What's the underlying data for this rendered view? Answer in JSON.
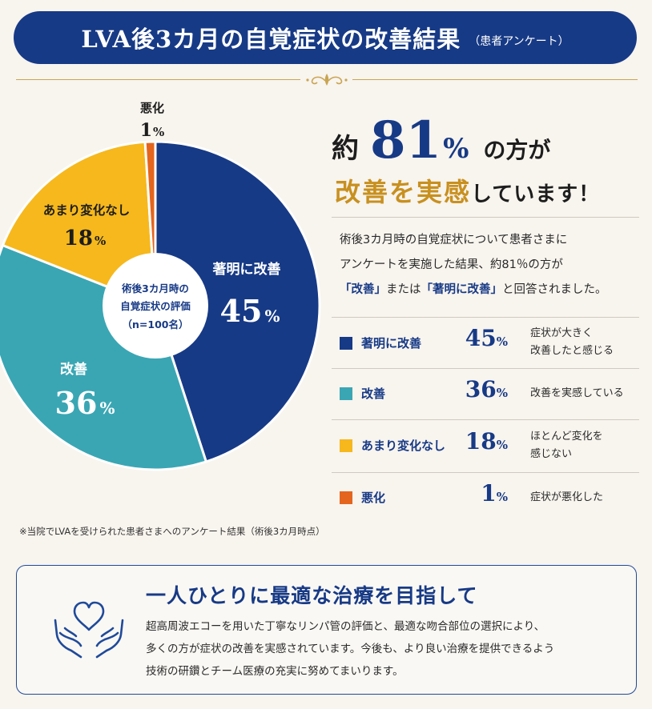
{
  "banner": {
    "title": "LVA後3カ月の自覚症状の改善結果",
    "subtitle": "（患者アンケート）"
  },
  "headline": {
    "prefix": "約",
    "value": "81",
    "unit": "%",
    "suffix": "の方が",
    "line2_highlight": "改善を実感",
    "line2_rest": "しています！"
  },
  "description": {
    "line1": "術後3カ月時の自覚症状について患者さまに",
    "line2": "アンケートを実施した結果、約81％の方が",
    "q1": "「改善」",
    "mid": "または",
    "q2": "「著明に改善」",
    "end": "と回答されました。"
  },
  "chart_data": {
    "type": "pie",
    "center_label": [
      "術後3カ月時の",
      "自覚症状の評価",
      "（n=100名）"
    ],
    "unit": "%",
    "slices": [
      {
        "label": "著明に改善",
        "value": 45,
        "color": "#173a86"
      },
      {
        "label": "改善",
        "value": 36,
        "color": "#3aa6b4"
      },
      {
        "label": "あまり変化なし",
        "value": 18,
        "color": "#f6b81c"
      },
      {
        "label": "悪化",
        "value": 1,
        "color": "#e4651e"
      }
    ]
  },
  "legend": [
    {
      "label": "著明に改善",
      "value": "45",
      "unit": "%",
      "desc": [
        "症状が大きく",
        "改善したと感じる"
      ],
      "color": "#173a86"
    },
    {
      "label": "改善",
      "value": "36",
      "unit": "%",
      "desc": [
        "改善を実感している"
      ],
      "color": "#3aa6b4"
    },
    {
      "label": "あまり変化なし",
      "value": "18",
      "unit": "%",
      "desc": [
        "ほとんど変化を",
        "感じない"
      ],
      "color": "#f6b81c"
    },
    {
      "label": "悪化",
      "value": "1",
      "unit": "%",
      "desc": [
        "症状が悪化した"
      ],
      "color": "#e4651e"
    }
  ],
  "footnote": "※当院でLVAを受けられた患者さまへのアンケート結果（術後3カ月時点）",
  "message": {
    "icon": "heart-hands-icon",
    "title": "一人ひとりに最適な治療を目指して",
    "body": [
      "超高周波エコーを用いた丁寧なリンパ管の評価と、最適な吻合部位の選択により、",
      "多くの方が症状の改善を実感されています。今後も、より良い治療を提供できるよう",
      "技術の研鑽とチーム医療の充実に努めてまいります。"
    ]
  }
}
